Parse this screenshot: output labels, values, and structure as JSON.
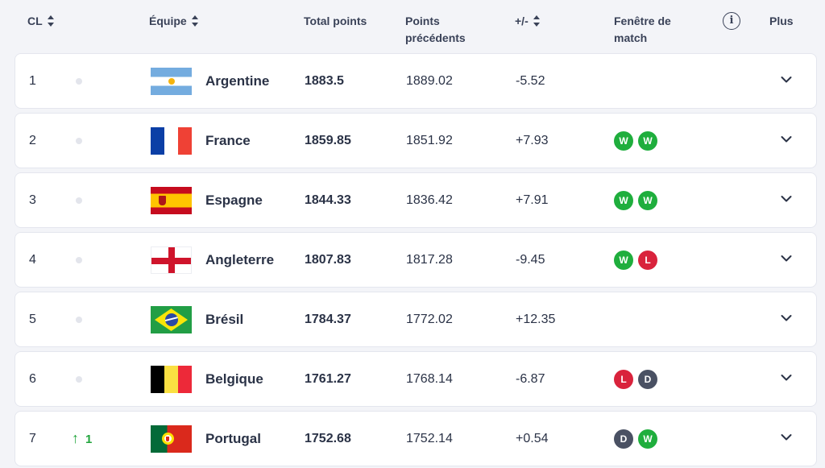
{
  "header": {
    "rank": "CL",
    "team": "Équipe",
    "total_line1": "Total points",
    "previous_line1": "Points",
    "previous_line2": "précédents",
    "diff": "+/-",
    "window_line1": "Fenêtre de",
    "window_line2": "match",
    "info_icon": "i",
    "more": "Plus"
  },
  "colors": {
    "win": "#1fae3d",
    "loss": "#d9233c",
    "draw": "#4a5163",
    "up": "#22a53d"
  },
  "rows": [
    {
      "rank": "1",
      "movement": "",
      "team": "Argentine",
      "flag": "flag-argentina-icon",
      "total": "1883.5",
      "previous": "1889.02",
      "diff": "-5.52",
      "results": []
    },
    {
      "rank": "2",
      "movement": "",
      "team": "France",
      "flag": "flag-france-icon",
      "total": "1859.85",
      "previous": "1851.92",
      "diff": "+7.93",
      "results": [
        "W",
        "W"
      ]
    },
    {
      "rank": "3",
      "movement": "",
      "team": "Espagne",
      "flag": "flag-spain-icon",
      "total": "1844.33",
      "previous": "1836.42",
      "diff": "+7.91",
      "results": [
        "W",
        "W"
      ]
    },
    {
      "rank": "4",
      "movement": "",
      "team": "Angleterre",
      "flag": "flag-england-icon",
      "total": "1807.83",
      "previous": "1817.28",
      "diff": "-9.45",
      "results": [
        "W",
        "L"
      ]
    },
    {
      "rank": "5",
      "movement": "",
      "team": "Brésil",
      "flag": "flag-brazil-icon",
      "total": "1784.37",
      "previous": "1772.02",
      "diff": "+12.35",
      "results": []
    },
    {
      "rank": "6",
      "movement": "",
      "team": "Belgique",
      "flag": "flag-belgium-icon",
      "total": "1761.27",
      "previous": "1768.14",
      "diff": "-6.87",
      "results": [
        "L",
        "D"
      ]
    },
    {
      "rank": "7",
      "movement": "1",
      "team": "Portugal",
      "flag": "flag-portugal-icon",
      "total": "1752.68",
      "previous": "1752.14",
      "diff": "+0.54",
      "results": [
        "D",
        "W"
      ]
    }
  ]
}
